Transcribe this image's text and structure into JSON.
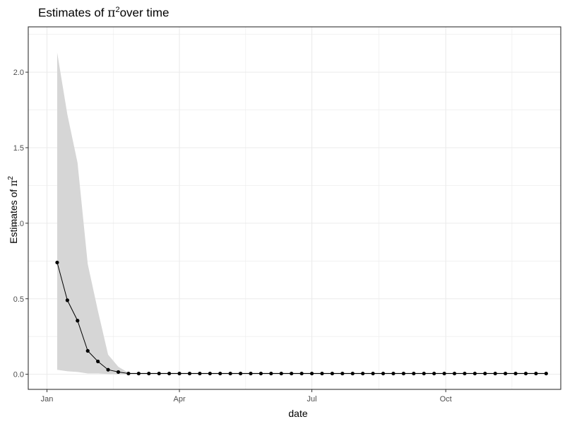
{
  "chart_data": {
    "type": "line",
    "title": {
      "prefix": "Estimates of ",
      "symbol": "π",
      "sup": "2",
      "suffix": "over time"
    },
    "xlabel": "date",
    "ylabel": {
      "prefix": "Estimates of ",
      "symbol": "π",
      "sup": "2"
    },
    "x_axis": {
      "type": "date",
      "range": [
        "2020-01-07",
        "2020-12-09"
      ],
      "ticks": [
        {
          "date": "2020-01-01",
          "label": "Jan"
        },
        {
          "date": "2020-04-01",
          "label": "Apr"
        },
        {
          "date": "2020-07-01",
          "label": "Jul"
        },
        {
          "date": "2020-10-01",
          "label": "Oct"
        }
      ]
    },
    "y_axis": {
      "range": [
        -0.1,
        2.3
      ],
      "ticks": [
        0.0,
        0.5,
        1.0,
        1.5,
        2.0
      ],
      "tick_labels": [
        "0.0",
        "0.5",
        "1.0",
        "1.5",
        "2.0"
      ]
    },
    "grid": true,
    "x": [
      "2020-01-08",
      "2020-01-15",
      "2020-01-22",
      "2020-01-29",
      "2020-02-05",
      "2020-02-12",
      "2020-02-19",
      "2020-02-26",
      "2020-03-04",
      "2020-03-11",
      "2020-03-18",
      "2020-03-25",
      "2020-04-01",
      "2020-04-08",
      "2020-04-15",
      "2020-04-22",
      "2020-04-29",
      "2020-05-06",
      "2020-05-13",
      "2020-05-20",
      "2020-05-27",
      "2020-06-03",
      "2020-06-10",
      "2020-06-17",
      "2020-06-24",
      "2020-07-01",
      "2020-07-08",
      "2020-07-15",
      "2020-07-22",
      "2020-07-29",
      "2020-08-05",
      "2020-08-12",
      "2020-08-19",
      "2020-08-26",
      "2020-09-02",
      "2020-09-09",
      "2020-09-16",
      "2020-09-23",
      "2020-09-30",
      "2020-10-07",
      "2020-10-14",
      "2020-10-21",
      "2020-10-28",
      "2020-11-04",
      "2020-11-11",
      "2020-11-18",
      "2020-11-25",
      "2020-12-02",
      "2020-12-09"
    ],
    "series": [
      {
        "values": [
          0.74,
          0.49,
          0.355,
          0.155,
          0.085,
          0.03,
          0.015,
          0.005,
          0.005,
          0.005,
          0.005,
          0.005,
          0.005,
          0.005,
          0.005,
          0.005,
          0.005,
          0.005,
          0.005,
          0.005,
          0.005,
          0.005,
          0.005,
          0.005,
          0.005,
          0.005,
          0.005,
          0.005,
          0.005,
          0.005,
          0.005,
          0.005,
          0.005,
          0.005,
          0.005,
          0.005,
          0.005,
          0.005,
          0.005,
          0.005,
          0.005,
          0.005,
          0.005,
          0.005,
          0.005,
          0.005,
          0.005,
          0.005,
          0.005
        ],
        "lower": [
          0.03,
          0.02,
          0.015,
          0.005,
          0.005,
          0.002,
          0.0,
          0.0,
          0.0,
          0.0,
          0.0,
          0.0,
          0.0,
          0.0,
          0.0,
          0.0,
          0.0,
          0.0,
          0.0,
          0.0,
          0.0,
          0.0,
          0.0,
          0.0,
          0.0,
          0.0,
          0.0,
          0.0,
          0.0,
          0.0,
          0.0,
          0.0,
          0.0,
          0.0,
          0.0,
          0.0,
          0.0,
          0.0,
          0.0,
          0.0,
          0.0,
          0.0,
          0.0,
          0.0,
          0.0,
          0.0,
          0.0,
          0.0,
          0.0
        ],
        "upper": [
          2.13,
          1.72,
          1.4,
          0.73,
          0.42,
          0.13,
          0.05,
          0.01,
          0.01,
          0.01,
          0.01,
          0.01,
          0.01,
          0.01,
          0.01,
          0.01,
          0.01,
          0.01,
          0.01,
          0.01,
          0.01,
          0.01,
          0.01,
          0.01,
          0.01,
          0.01,
          0.01,
          0.01,
          0.01,
          0.01,
          0.01,
          0.01,
          0.01,
          0.01,
          0.01,
          0.01,
          0.01,
          0.01,
          0.01,
          0.01,
          0.01,
          0.01,
          0.01,
          0.01,
          0.01,
          0.01,
          0.01,
          0.01,
          0.01
        ],
        "line_color": "#000000",
        "ribbon_color": "#d6d6d6"
      }
    ],
    "colors": {
      "panel_border": "#333333",
      "grid": "#ebebeb"
    }
  }
}
